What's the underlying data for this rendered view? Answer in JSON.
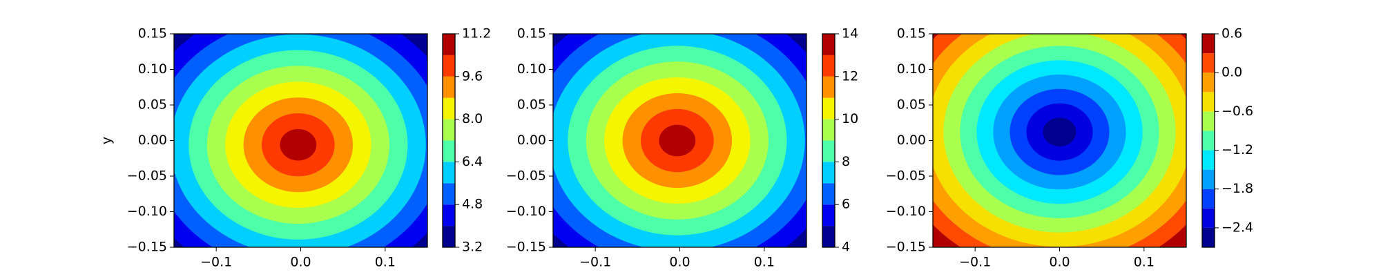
{
  "chart_data": [
    {
      "type": "contour",
      "ylabel": "y",
      "xlim": [
        -0.15,
        0.15
      ],
      "ylim": [
        -0.15,
        0.15
      ],
      "xticks": [
        {
          "value": -0.1,
          "label": "−0.1"
        },
        {
          "value": 0,
          "label": "0.0"
        },
        0.1
      ],
      "yticks": [
        {
          "value": -0.15,
          "label": "−0.15"
        },
        {
          "value": -0.1,
          "label": "−0.10"
        },
        {
          "value": -0.05,
          "label": "−0.05"
        },
        {
          "value": 0,
          "label": "0.00"
        },
        0.05,
        {
          "value": 0.1,
          "label": "0.10"
        },
        0.15
      ],
      "levels": [
        3.2,
        4.0,
        4.8,
        5.6,
        6.4,
        7.2,
        8.0,
        8.8,
        9.6,
        10.4,
        11.2
      ],
      "colors": [
        "#00008f",
        "#0000f1",
        "#0060ff",
        "#00d0ff",
        "#4effa9",
        "#a9ff4e",
        "#f5f500",
        "#ff9000",
        "#ff3a00",
        "#b20000"
      ],
      "cticks": [
        3.2,
        4.8,
        6.4,
        {
          "value": 8,
          "label": "8.0"
        },
        9.6,
        11.2
      ]
    },
    {
      "type": "contour",
      "xlim": [
        -0.15,
        0.15
      ],
      "ylim": [
        -0.15,
        0.15
      ],
      "xticks": [
        {
          "value": -0.1,
          "label": "−0.1"
        },
        {
          "value": 0,
          "label": "0.0"
        },
        0.1
      ],
      "yticks": [
        {
          "value": -0.15,
          "label": "−0.15"
        },
        {
          "value": -0.1,
          "label": "−0.10"
        },
        {
          "value": -0.05,
          "label": "−0.05"
        },
        {
          "value": 0,
          "label": "0.00"
        },
        0.05,
        {
          "value": 0.1,
          "label": "0.10"
        },
        0.15
      ],
      "levels": [
        4,
        5,
        6,
        7,
        8,
        9,
        10,
        11,
        12,
        13,
        14
      ],
      "colors": [
        "#00008f",
        "#0000f1",
        "#0060ff",
        "#00d0ff",
        "#4effa9",
        "#a9ff4e",
        "#f5f500",
        "#ff9000",
        "#ff3a00",
        "#b20000"
      ],
      "cticks": [
        4,
        6,
        8,
        10,
        12,
        14
      ]
    },
    {
      "type": "contour",
      "xlim": [
        -0.15,
        0.15
      ],
      "ylim": [
        -0.15,
        0.15
      ],
      "xticks": [
        {
          "value": -0.1,
          "label": "−0.1"
        },
        {
          "value": 0,
          "label": "0.0"
        },
        0.1
      ],
      "yticks": [
        {
          "value": -0.15,
          "label": "−0.15"
        },
        {
          "value": -0.1,
          "label": "−0.10"
        },
        {
          "value": -0.05,
          "label": "−0.05"
        },
        {
          "value": 0,
          "label": "0.00"
        },
        0.05,
        {
          "value": 0.1,
          "label": "0.10"
        },
        0.15
      ],
      "levels": [
        -2.7,
        -2.4,
        -2.1,
        -1.8,
        -1.5,
        -1.2,
        -0.9,
        -0.6,
        -0.3,
        0.0,
        0.3,
        0.6
      ],
      "colors": [
        "#00008f",
        "#0000e0",
        "#0040ff",
        "#00a0ff",
        "#00e8ff",
        "#4effa9",
        "#a9ff4e",
        "#f5e000",
        "#ffa000",
        "#ff4a00",
        "#b20000"
      ],
      "cticks": [
        {
          "value": -2.4,
          "label": "−2.4"
        },
        {
          "value": -1.8,
          "label": "−1.8"
        },
        {
          "value": -1.2,
          "label": "−1.2"
        },
        {
          "value": -0.6,
          "label": "−0.6"
        },
        {
          "value": 0,
          "label": "0.0"
        },
        0.6
      ]
    }
  ]
}
